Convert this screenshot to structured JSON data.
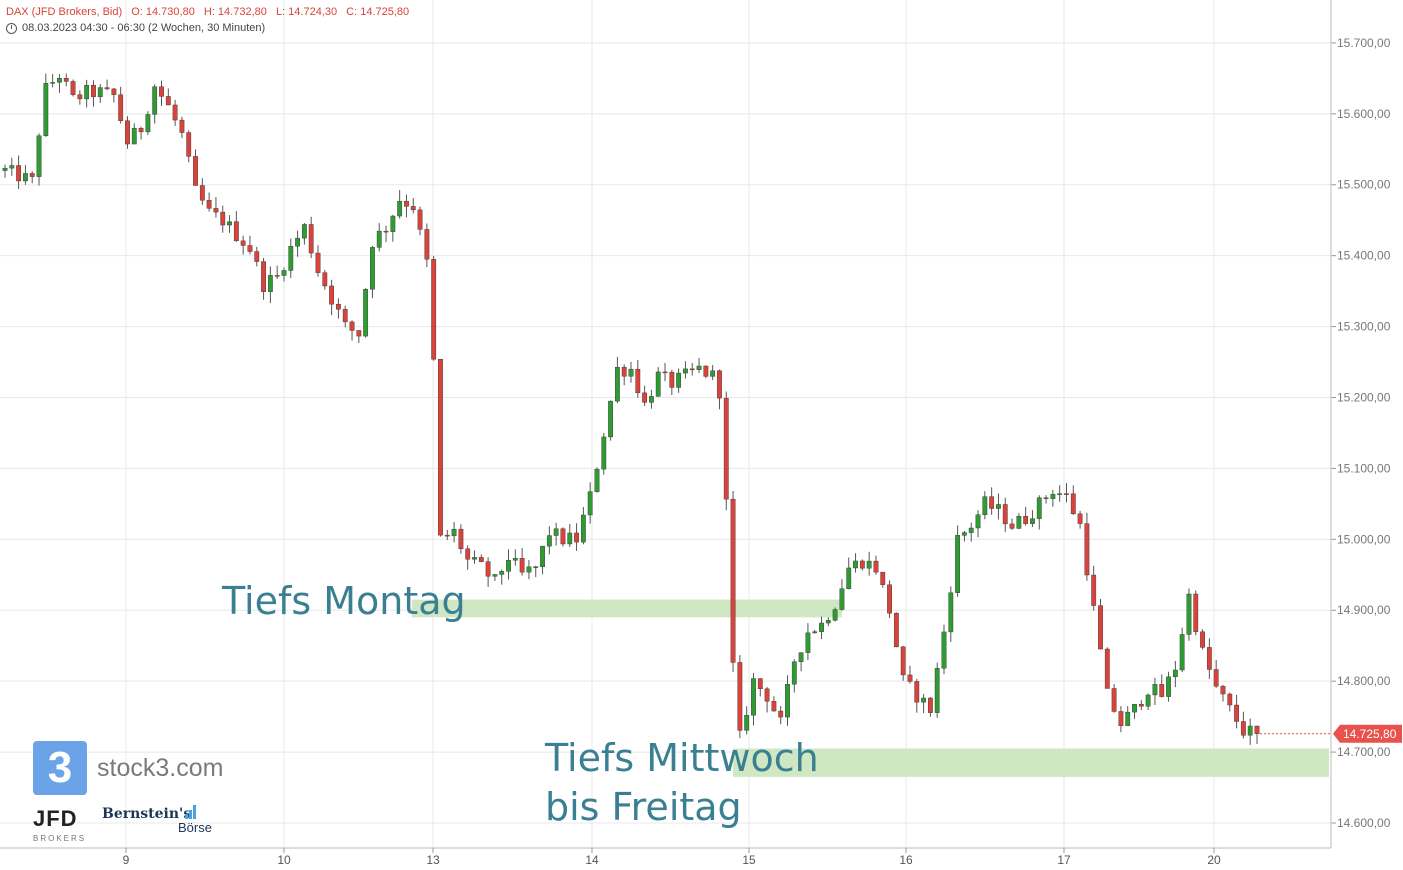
{
  "header": {
    "symbol": "DAX (JFD Brokers, Bid)",
    "open": "O: 14.730,80",
    "high": "H: 14.732,80",
    "low": "L: 14.724,30",
    "close": "C: 14.725,80",
    "subtitle": "08.03.2023 04:30 - 06:30   (2 Wochen, 30 Minuten)"
  },
  "annotations": {
    "tiefs_montag": "Tiefs Montag",
    "tiefs_mittwoch_line1": "Tiefs Mittwoch",
    "tiefs_mittwoch_line2": "bis Freitag"
  },
  "logos": {
    "stock3_glyph": "3",
    "stock3_text": "stock3.com",
    "jfd_text": "JFD",
    "jfd_sub": "BROKERS",
    "bernstein_line1": "Bernstein's",
    "bernstein_line2": "Börse"
  },
  "colors": {
    "up": "#2e9b33",
    "down": "#d9433b",
    "grid": "#e8e8e8",
    "zone": "#cfe8c3",
    "annotation": "#3b8092",
    "price_tag": "#e8524c"
  },
  "chart_data": {
    "type": "candlestick",
    "title": "DAX (JFD Brokers, Bid)",
    "interval": "30 Minuten",
    "y_axis": {
      "min": 14550,
      "max": 15750,
      "ticks": [
        14600,
        14700,
        14800,
        14900,
        15000,
        15100,
        15200,
        15300,
        15400,
        15500,
        15600,
        15700
      ],
      "tick_labels": [
        "14.600,00",
        "14.700,00",
        "14.800,00",
        "14.900,00",
        "15.000,00",
        "15.100,00",
        "15.200,00",
        "15.300,00",
        "15.400,00",
        "15.500,00",
        "15.600,00",
        "15.700,00"
      ],
      "position": "right"
    },
    "x_axis": {
      "labels": [
        "9",
        "10",
        "13",
        "14",
        "15",
        "16",
        "17",
        "20"
      ]
    },
    "last_price": 14725.8,
    "last_price_label": "14.725,80",
    "path": [
      [
        0,
        15520
      ],
      [
        4,
        15505
      ],
      [
        5,
        15575
      ],
      [
        6,
        15635
      ],
      [
        8,
        15655
      ],
      [
        10,
        15620
      ],
      [
        12,
        15630
      ],
      [
        14,
        15630
      ],
      [
        16,
        15625
      ],
      [
        18,
        15560
      ],
      [
        20,
        15580
      ],
      [
        22,
        15640
      ],
      [
        24,
        15610
      ],
      [
        26,
        15570
      ],
      [
        28,
        15490
      ],
      [
        30,
        15460
      ],
      [
        32,
        15450
      ],
      [
        34,
        15430
      ],
      [
        36,
        15410
      ],
      [
        38,
        15360
      ],
      [
        40,
        15370
      ],
      [
        42,
        15410
      ],
      [
        44,
        15440
      ],
      [
        46,
        15380
      ],
      [
        48,
        15340
      ],
      [
        50,
        15300
      ],
      [
        52,
        15290
      ],
      [
        54,
        15420
      ],
      [
        56,
        15440
      ],
      [
        58,
        15480
      ],
      [
        60,
        15470
      ],
      [
        62,
        15390
      ],
      [
        63,
        15250
      ],
      [
        64,
        15000
      ],
      [
        66,
        15010
      ],
      [
        68,
        14970
      ],
      [
        70,
        14960
      ],
      [
        72,
        14940
      ],
      [
        74,
        14975
      ],
      [
        76,
        14950
      ],
      [
        78,
        14960
      ],
      [
        80,
        15010
      ],
      [
        82,
        15000
      ],
      [
        84,
        15000
      ],
      [
        86,
        15060
      ],
      [
        88,
        15150
      ],
      [
        90,
        15240
      ],
      [
        92,
        15240
      ],
      [
        94,
        15190
      ],
      [
        96,
        15230
      ],
      [
        98,
        15220
      ],
      [
        100,
        15230
      ],
      [
        102,
        15240
      ],
      [
        104,
        15230
      ],
      [
        105,
        15210
      ],
      [
        106,
        15050
      ],
      [
        107,
        14820
      ],
      [
        108,
        14720
      ],
      [
        110,
        14800
      ],
      [
        112,
        14780
      ],
      [
        114,
        14740
      ],
      [
        116,
        14830
      ],
      [
        118,
        14870
      ],
      [
        120,
        14880
      ],
      [
        122,
        14910
      ],
      [
        124,
        14960
      ],
      [
        126,
        14970
      ],
      [
        128,
        14960
      ],
      [
        130,
        14900
      ],
      [
        132,
        14800
      ],
      [
        134,
        14780
      ],
      [
        136,
        14760
      ],
      [
        138,
        14870
      ],
      [
        140,
        15000
      ],
      [
        142,
        15020
      ],
      [
        144,
        15050
      ],
      [
        146,
        15040
      ],
      [
        148,
        15020
      ],
      [
        150,
        15030
      ],
      [
        152,
        15050
      ],
      [
        154,
        15070
      ],
      [
        156,
        15060
      ],
      [
        158,
        15020
      ],
      [
        160,
        14900
      ],
      [
        162,
        14780
      ],
      [
        164,
        14740
      ],
      [
        166,
        14760
      ],
      [
        168,
        14790
      ],
      [
        170,
        14780
      ],
      [
        172,
        14820
      ],
      [
        174,
        14920
      ],
      [
        176,
        14840
      ],
      [
        178,
        14790
      ],
      [
        180,
        14760
      ],
      [
        182,
        14730
      ],
      [
        184,
        14725.8
      ]
    ],
    "zones": [
      {
        "label": "Tiefs Montag",
        "low": 14890,
        "high": 14915,
        "from_bar": 63,
        "to_bar": 123
      },
      {
        "label": "Tiefs Mittwoch bis Freitag",
        "low": 14665,
        "high": 14705,
        "from_bar": 107,
        "to_bar": 184
      }
    ]
  }
}
